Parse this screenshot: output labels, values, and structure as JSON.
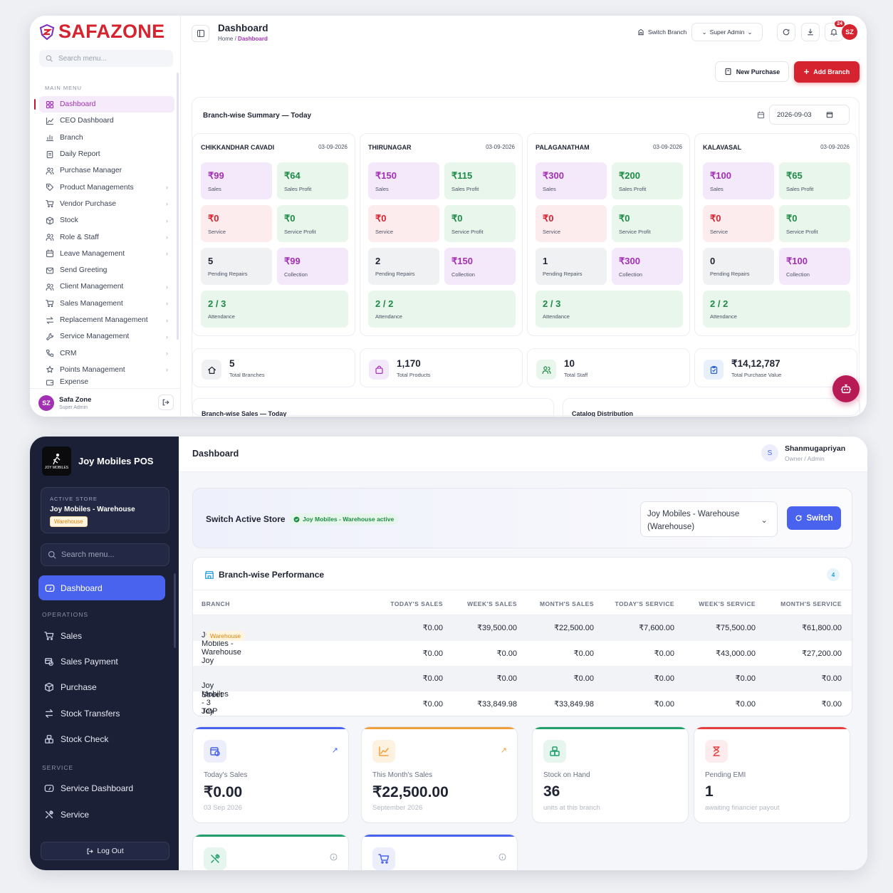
{
  "app1": {
    "logo_text": "SAFAZONE",
    "search_placeholder": "Search menu...",
    "menu_section": "MAIN MENU",
    "menu": [
      {
        "label": "Dashboard",
        "icon": "grid-icon"
      },
      {
        "label": "CEO Dashboard",
        "icon": "line-chart-icon"
      },
      {
        "label": "Branch",
        "icon": "bar-chart-icon"
      },
      {
        "label": "Daily Report",
        "icon": "report-icon"
      },
      {
        "label": "Purchase Manager",
        "icon": "users-icon"
      },
      {
        "label": "Product Managements",
        "icon": "tag-icon"
      },
      {
        "label": "Vendor Purchase",
        "icon": "cart-icon"
      },
      {
        "label": "Stock",
        "icon": "box-icon"
      },
      {
        "label": "Role & Staff",
        "icon": "users-icon"
      },
      {
        "label": "Leave Management",
        "icon": "calendar-icon"
      },
      {
        "label": "Send Greeting",
        "icon": "mail-icon"
      },
      {
        "label": "Client Management",
        "icon": "users-icon"
      },
      {
        "label": "Sales Management",
        "icon": "cart-icon"
      },
      {
        "label": "Replacement Management",
        "icon": "swap-icon"
      },
      {
        "label": "Service Management",
        "icon": "wrench-icon"
      },
      {
        "label": "CRM",
        "icon": "phone-icon"
      },
      {
        "label": "Points Management",
        "icon": "star-icon"
      },
      {
        "label": "Expense",
        "icon": "wallet-icon"
      }
    ],
    "user_initials": "SZ",
    "user_name": "Safa Zone",
    "user_role": "Super Admin",
    "page_title": "Dashboard",
    "breadcrumb_home": "Home",
    "breadcrumb_sep": "/",
    "breadcrumb_current": "Dashboard",
    "switch_branch": "Switch Branch",
    "role_select": "Super Admin",
    "notification_count": "24",
    "avatar_initials": "SZ",
    "new_purchase": "New Purchase",
    "add_branch": "Add Branch",
    "summary_title": "Branch-wise Summary — Today",
    "summary_date": "2026-09-03",
    "branches": [
      {
        "name": "CHIKKANDHAR CAVADI",
        "date": "03-09-2026",
        "sales": "₹99",
        "sales_profit": "₹64",
        "service": "₹0",
        "service_profit": "₹0",
        "pending_repairs": "5",
        "collection": "₹99",
        "attendance": "2 / 3"
      },
      {
        "name": "THIRUNAGAR",
        "date": "03-09-2026",
        "sales": "₹150",
        "sales_profit": "₹115",
        "service": "₹0",
        "service_profit": "₹0",
        "pending_repairs": "2",
        "collection": "₹150",
        "attendance": "2 / 2"
      },
      {
        "name": "PALAGANATHAM",
        "date": "03-09-2026",
        "sales": "₹300",
        "sales_profit": "₹200",
        "service": "₹0",
        "service_profit": "₹0",
        "pending_repairs": "1",
        "collection": "₹300",
        "attendance": "2 / 3"
      },
      {
        "name": "KALAVASAL",
        "date": "03-09-2026",
        "sales": "₹100",
        "sales_profit": "₹65",
        "service": "₹0",
        "service_profit": "₹0",
        "pending_repairs": "0",
        "collection": "₹100",
        "attendance": "2 / 2"
      }
    ],
    "tile_labels": {
      "sales": "Sales",
      "sales_profit": "Sales Profit",
      "service": "Service",
      "service_profit": "Service Profit",
      "pending_repairs": "Pending Repairs",
      "collection": "Collection",
      "attendance": "Attendance"
    },
    "stats": [
      {
        "value": "5",
        "label": "Total Branches",
        "icon": "home-icon",
        "color": "#f0f1f3"
      },
      {
        "value": "1,170",
        "label": "Total Products",
        "icon": "bag-icon",
        "color": "#f4e9fb"
      },
      {
        "value": "10",
        "label": "Total Staff",
        "icon": "users-icon",
        "color": "#e8f6ec"
      },
      {
        "value": "₹14,12,787",
        "label": "Total Purchase Value",
        "icon": "clipboard-icon",
        "color": "#e8f0fc"
      }
    ],
    "bottom_left_title": "Branch-wise Sales — Today",
    "bottom_right_title": "Catalog Distribution"
  },
  "app2": {
    "brand_name": "Joy Mobiles POS",
    "brand_logo_text": "JOY MOBILES",
    "active_store_label": "ACTIVE STORE",
    "active_store_name": "Joy Mobiles - Warehouse",
    "active_store_badge": "Warehouse",
    "search_placeholder": "Search menu...",
    "dashboard_label": "Dashboard",
    "section_operations": "OPERATIONS",
    "operations": [
      {
        "label": "Sales",
        "icon": "cart-icon"
      },
      {
        "label": "Sales Payment",
        "icon": "payment-icon"
      },
      {
        "label": "Purchase",
        "icon": "box-icon"
      },
      {
        "label": "Stock Transfers",
        "icon": "transfer-icon"
      },
      {
        "label": "Stock Check",
        "icon": "boxes-icon"
      }
    ],
    "section_service": "SERVICE",
    "service_items": [
      {
        "label": "Service Dashboard",
        "icon": "gauge-icon"
      },
      {
        "label": "Service",
        "icon": "tools-icon"
      }
    ],
    "logout_label": "Log Out",
    "page_title": "Dashboard",
    "user_initial": "S",
    "user_name": "Shanmugapriyan",
    "user_role": "Owner / Admin",
    "switch_title": "Switch Active Store",
    "switch_badge": "Joy Mobiles - Warehouse active",
    "store_select_line1": "Joy Mobiles - Warehouse",
    "store_select_line2": "(Warehouse)",
    "switch_button": "Switch",
    "performance_title": "Branch-wise Performance",
    "performance_count": "4",
    "table_headers": [
      "BRANCH",
      "TODAY'S SALES",
      "WEEK'S SALES",
      "MONTH'S SALES",
      "TODAY'S SERVICE",
      "WEEK'S SERVICE",
      "MONTH'S SERVICE"
    ],
    "table_rows": [
      {
        "branch": "Joy Mobiles - Warehouse",
        "badge": "Warehouse",
        "cells": [
          "₹0.00",
          "₹39,500.00",
          "₹22,500.00",
          "₹7,600.00",
          "₹75,500.00",
          "₹61,800.00"
        ]
      },
      {
        "branch": "Joy Mobiles - 2 Glasskara Street",
        "badge": "",
        "cells": [
          "₹0.00",
          "₹0.00",
          "₹0.00",
          "₹0.00",
          "₹43,000.00",
          "₹27,200.00"
        ]
      },
      {
        "branch": "Joy Mobiles - 3 TOP",
        "badge": "",
        "cells": [
          "₹0.00",
          "₹0.00",
          "₹0.00",
          "₹0.00",
          "₹0.00",
          "₹0.00"
        ]
      },
      {
        "branch": "Joy Mobiles -1 Pandi bazaar",
        "badge": "",
        "cells": [
          "₹0.00",
          "₹33,849.98",
          "₹33,849.98",
          "₹0.00",
          "₹0.00",
          "₹0.00"
        ]
      }
    ],
    "kpis": [
      {
        "label": "Today's Sales",
        "value": "₹0.00",
        "sub": "03 Sep 2026",
        "icon": "sales-icon",
        "accent": "#4a63ef",
        "arrow": "↗"
      },
      {
        "label": "This Month's Sales",
        "value": "₹22,500.00",
        "sub": "September 2026",
        "icon": "chart-icon",
        "accent": "#f0a03a",
        "arrow": "↗"
      },
      {
        "label": "Stock on Hand",
        "value": "36",
        "sub": "units at this branch",
        "icon": "boxes-icon",
        "accent": "#22a06b",
        "arrow": ""
      },
      {
        "label": "Pending EMI",
        "value": "1",
        "sub": "awaiting financier payout",
        "icon": "hourglass-icon",
        "accent": "#e53e3e",
        "arrow": ""
      }
    ],
    "kpis_row2": [
      {
        "icon": "tools-icon",
        "accent": "#22a06b"
      },
      {
        "icon": "cart-icon",
        "accent": "#4a63ef"
      }
    ]
  }
}
